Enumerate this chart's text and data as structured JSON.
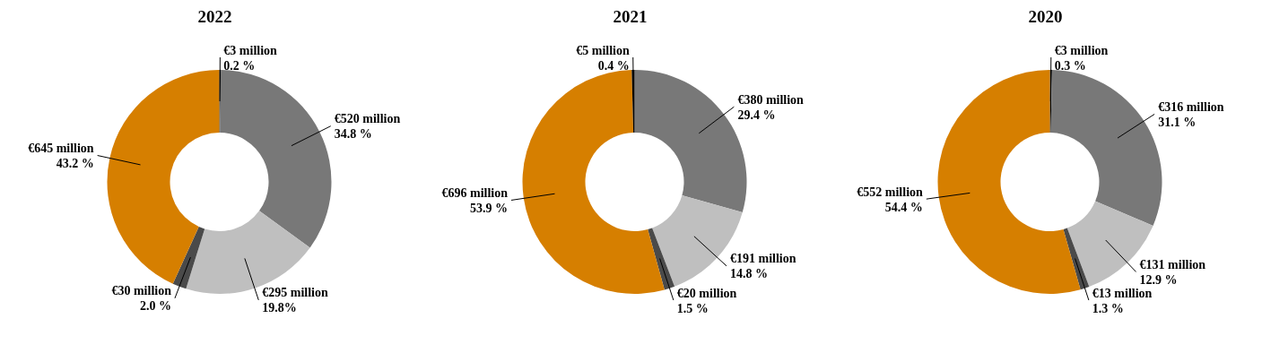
{
  "chart_data": [
    {
      "type": "donut",
      "title": "2022",
      "categories": [
        null,
        null,
        null,
        null,
        null
      ],
      "values": [
        0.2,
        34.8,
        19.8,
        2.0,
        43.2
      ],
      "colors": [
        "#000000",
        "#787878",
        "#bfbfbf",
        "#4a4a4a",
        "#d67f00"
      ],
      "value_labels": [
        "€3 million\n0.2 %",
        "€520 million\n34.8 %",
        "€295 million\n19.8%",
        "€30 million\n2.0 %",
        "€645 million\n43.2 %"
      ]
    },
    {
      "type": "donut",
      "title": "2021",
      "categories": [
        null,
        null,
        null,
        null,
        null
      ],
      "values": [
        29.4,
        14.8,
        1.5,
        53.9,
        0.4
      ],
      "colors": [
        "#787878",
        "#bfbfbf",
        "#4a4a4a",
        "#d67f00",
        "#000000"
      ],
      "value_labels": [
        "€380 million\n29.4 %",
        "€191 million\n14.8 %",
        "€20 million\n1.5 %",
        "€696 million\n53.9 %",
        "€5 million\n0.4 %"
      ]
    },
    {
      "type": "donut",
      "title": "2020",
      "categories": [
        null,
        null,
        null,
        null,
        null
      ],
      "values": [
        0.3,
        31.1,
        12.9,
        1.3,
        54.4
      ],
      "colors": [
        "#000000",
        "#787878",
        "#bfbfbf",
        "#4a4a4a",
        "#d67f00"
      ],
      "value_labels": [
        "€3 million\n0.3 %",
        "€316 million\n31.1 %",
        "€131 million\n12.9 %",
        "€13 million\n1.3 %",
        "€552 million\n54.4 %"
      ]
    }
  ]
}
